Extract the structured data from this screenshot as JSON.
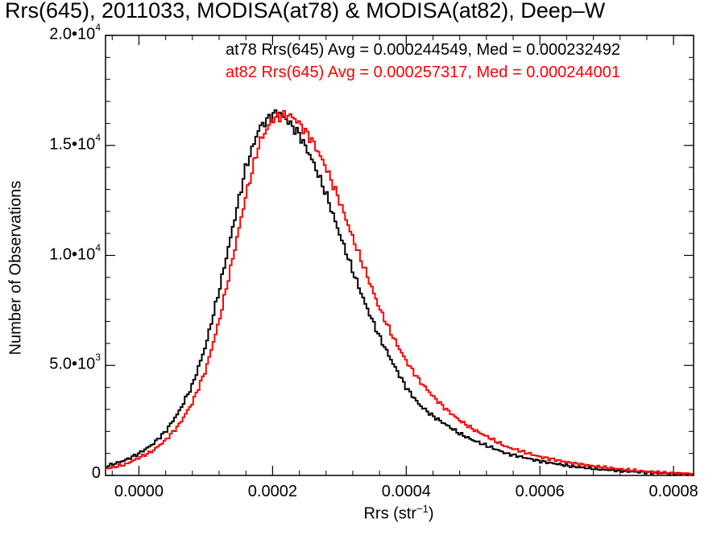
{
  "chart_data": {
    "type": "line",
    "title": "Rrs(645), 2011033, MODISA(at78) & MODISA(at82), Deep–W",
    "xlabel": "Rrs (str",
    "xlabel_sup": "−1",
    "xlabel_close": ")",
    "ylabel": "Number of Observations",
    "xlim": [
      -5e-05,
      0.00083
    ],
    "ylim": [
      0,
      20000
    ],
    "x_ticks": [
      {
        "value": 0.0,
        "label": "0.0000"
      },
      {
        "value": 0.0002,
        "label": "0.0002"
      },
      {
        "value": 0.0004,
        "label": "0.0004"
      },
      {
        "value": 0.0006,
        "label": "0.0006"
      },
      {
        "value": 0.0008,
        "label": "0.0008"
      }
    ],
    "y_ticks": [
      {
        "value": 0,
        "label": "0",
        "exp": ""
      },
      {
        "value": 5000,
        "label": "5.0•10",
        "exp": "3"
      },
      {
        "value": 10000,
        "label": "1.0•10",
        "exp": "4"
      },
      {
        "value": 15000,
        "label": "1.5•10",
        "exp": "4"
      },
      {
        "value": 20000,
        "label": "2.0•10",
        "exp": "4"
      }
    ],
    "legend": [
      {
        "text": "at78 Rrs(645) Avg = 0.000244549, Med = 0.000232492",
        "color": "#000000"
      },
      {
        "text": "at82 Rrs(645) Avg = 0.000257317, Med = 0.000244001",
        "color": "#ff0000"
      }
    ],
    "series": [
      {
        "color": "#000000",
        "x": [
          -5e-05,
          -2e-05,
          0.0,
          2e-05,
          4e-05,
          6e-05,
          8e-05,
          0.0001,
          0.00012,
          0.00014,
          0.00016,
          0.00018,
          0.0002,
          0.00021,
          0.00022,
          0.00024,
          0.00026,
          0.00028,
          0.0003,
          0.00032,
          0.00034,
          0.00036,
          0.00038,
          0.0004,
          0.00042,
          0.00044,
          0.00046,
          0.00048,
          0.0005,
          0.00055,
          0.0006,
          0.00065,
          0.0007,
          0.00075,
          0.0008,
          0.00083
        ],
        "y": [
          400,
          700,
          1000,
          1400,
          2000,
          2900,
          4100,
          5900,
          8400,
          11200,
          14000,
          15800,
          16400,
          16500,
          16200,
          15500,
          14300,
          12800,
          11000,
          9300,
          7700,
          6300,
          5100,
          4000,
          3200,
          2700,
          2300,
          1900,
          1600,
          1000,
          650,
          400,
          250,
          150,
          80,
          50
        ]
      },
      {
        "color": "#ff0000",
        "x": [
          -5e-05,
          -2e-05,
          0.0,
          2e-05,
          4e-05,
          6e-05,
          8e-05,
          0.0001,
          0.00012,
          0.00014,
          0.00016,
          0.00018,
          0.0002,
          0.00022,
          0.00023,
          0.00024,
          0.00026,
          0.00028,
          0.0003,
          0.00032,
          0.00034,
          0.00036,
          0.00038,
          0.0004,
          0.00042,
          0.00044,
          0.00046,
          0.00048,
          0.0005,
          0.00055,
          0.0006,
          0.00065,
          0.0007,
          0.00075,
          0.0008,
          0.00083
        ],
        "y": [
          300,
          500,
          800,
          1100,
          1600,
          2300,
          3300,
          4800,
          7000,
          9800,
          12700,
          15100,
          16200,
          16400,
          16300,
          16000,
          15200,
          14000,
          12500,
          10800,
          9200,
          7600,
          6300,
          5200,
          4300,
          3600,
          3000,
          2500,
          2100,
          1300,
          850,
          550,
          350,
          200,
          100,
          60
        ]
      }
    ]
  }
}
